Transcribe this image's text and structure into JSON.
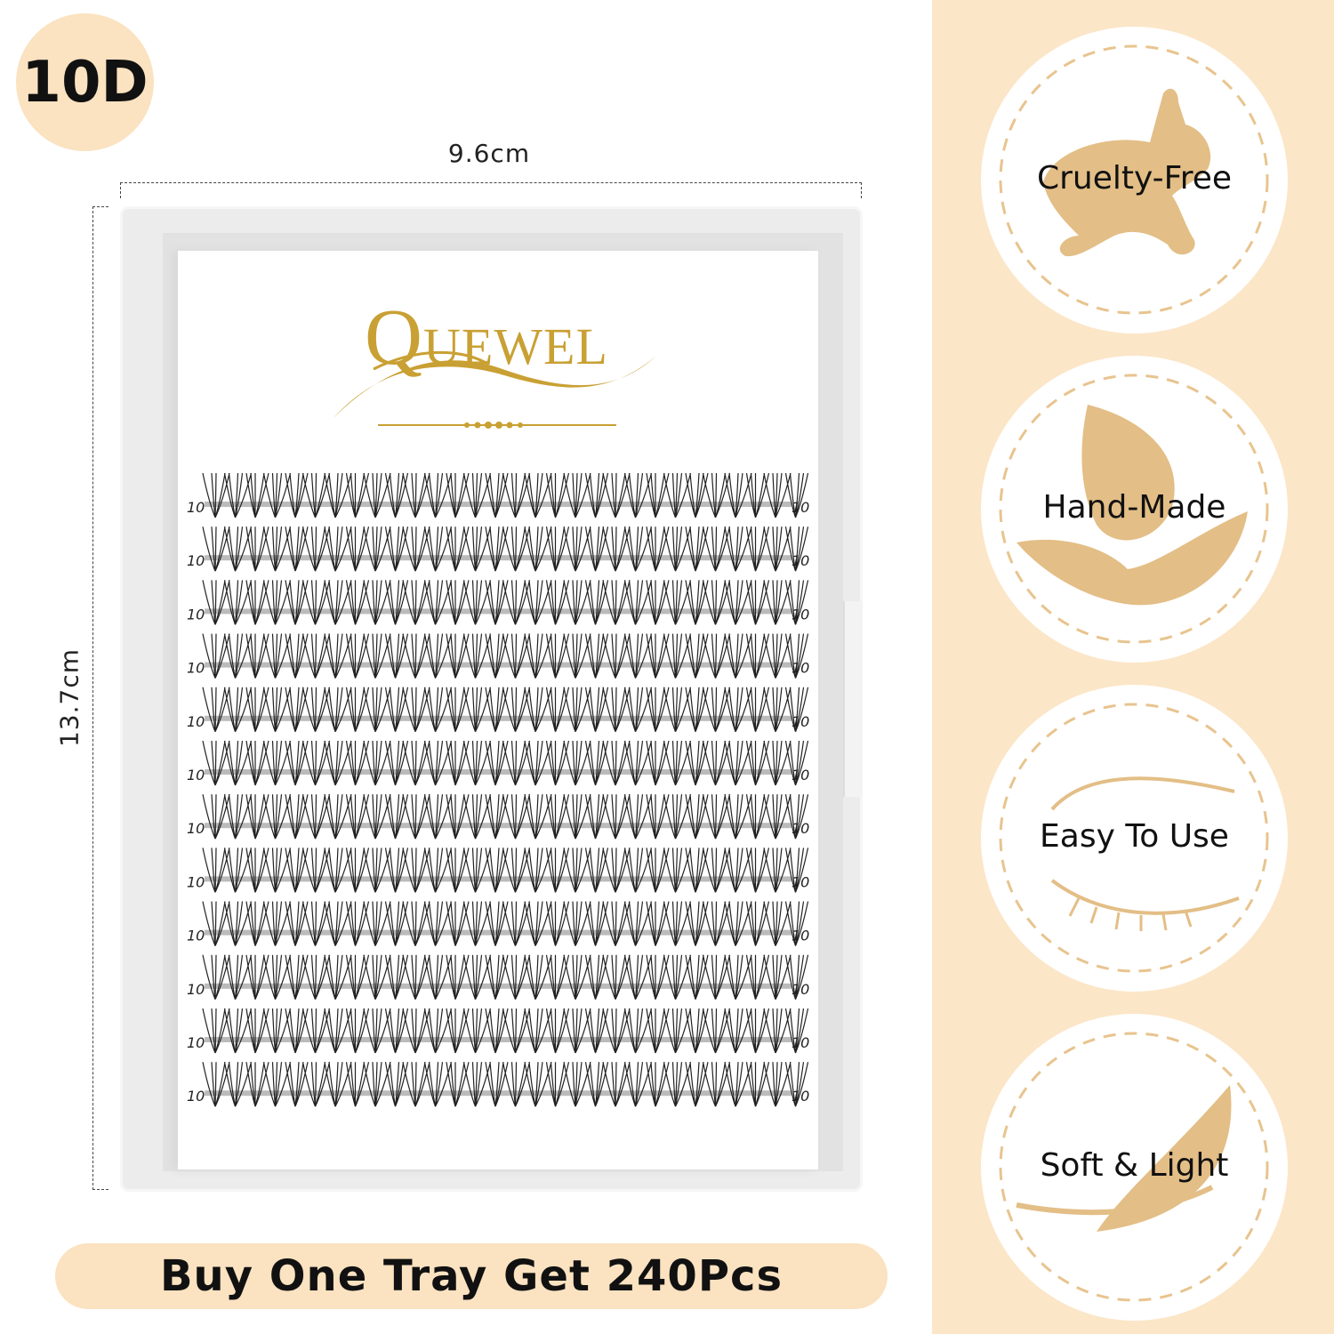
{
  "badge": {
    "label": "10D"
  },
  "dimensions": {
    "width": "9.6cm",
    "height": "13.7cm"
  },
  "brand": {
    "logo_text": "QUEWEL"
  },
  "tray": {
    "row_count": 12,
    "row_label": "10"
  },
  "promo": {
    "text": "Buy One Tray Get 240Pcs"
  },
  "features": [
    {
      "label": "Cruelty-Free",
      "icon": "rabbit-icon"
    },
    {
      "label": "Hand-Made",
      "icon": "hand-leaf-icon"
    },
    {
      "label": "Easy To Use",
      "icon": "eye-tweezers-icon"
    },
    {
      "label": "Soft & Light",
      "icon": "feather-icon"
    }
  ],
  "colors": {
    "accent": "#fce6c8",
    "icon": "#e3be86",
    "gold": "#c9a033"
  }
}
